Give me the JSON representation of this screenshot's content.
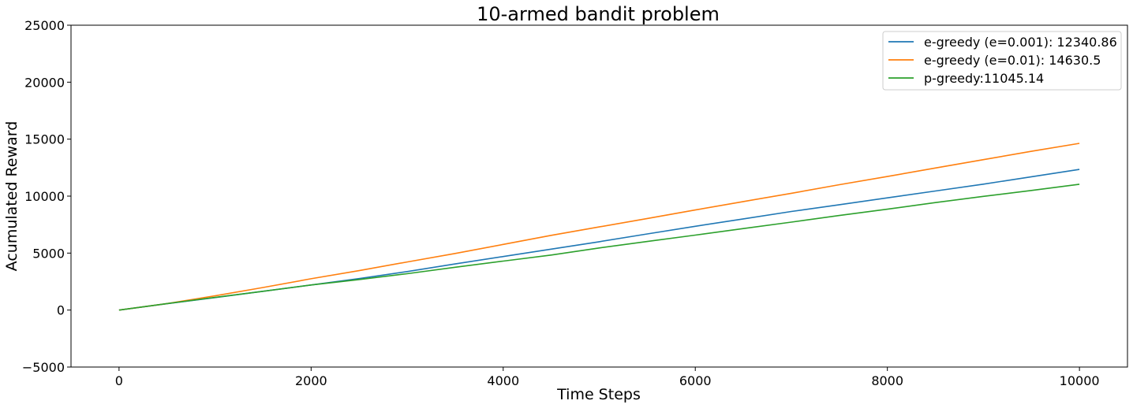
{
  "chart_data": {
    "type": "line",
    "title": "10-armed bandit problem",
    "xlabel": "Time Steps",
    "ylabel": "Acumulated Reward",
    "xlim": [
      -500,
      10500
    ],
    "ylim": [
      -5000,
      25000
    ],
    "xticks": [
      0,
      2000,
      4000,
      6000,
      8000,
      10000
    ],
    "yticks": [
      -5000,
      0,
      5000,
      10000,
      15000,
      20000,
      25000
    ],
    "xtick_labels": [
      "0",
      "2000",
      "4000",
      "6000",
      "8000",
      "10000"
    ],
    "ytick_labels": [
      "−5000",
      "0",
      "5000",
      "10000",
      "15000",
      "20000",
      "25000"
    ],
    "grid": false,
    "legend_position": "top-right",
    "x": [
      0,
      500,
      1000,
      1500,
      2000,
      2500,
      3000,
      3500,
      4000,
      4500,
      5000,
      5500,
      6000,
      6500,
      7000,
      7500,
      8000,
      8500,
      9000,
      9500,
      10000
    ],
    "series": [
      {
        "name": "e-greedy (e=0.001): 12340.86",
        "color": "#1f77b4",
        "values": [
          0,
          560,
          1100,
          1650,
          2200,
          2760,
          3380,
          4050,
          4700,
          5350,
          6000,
          6680,
          7350,
          8000,
          8650,
          9250,
          9850,
          10450,
          11050,
          11700,
          12340
        ]
      },
      {
        "name": "e-greedy (e=0.01): 14630.5",
        "color": "#ff7f0e",
        "values": [
          0,
          570,
          1250,
          1980,
          2750,
          3460,
          4220,
          4970,
          5760,
          6560,
          7300,
          8040,
          8780,
          9520,
          10250,
          11000,
          11720,
          12470,
          13200,
          13930,
          14630
        ]
      },
      {
        "name": "p-greedy:11045.14",
        "color": "#2ca02c",
        "values": [
          0,
          570,
          1110,
          1650,
          2200,
          2680,
          3190,
          3760,
          4300,
          4830,
          5450,
          6020,
          6580,
          7150,
          7720,
          8300,
          8850,
          9430,
          9980,
          10500,
          11045
        ]
      }
    ]
  }
}
